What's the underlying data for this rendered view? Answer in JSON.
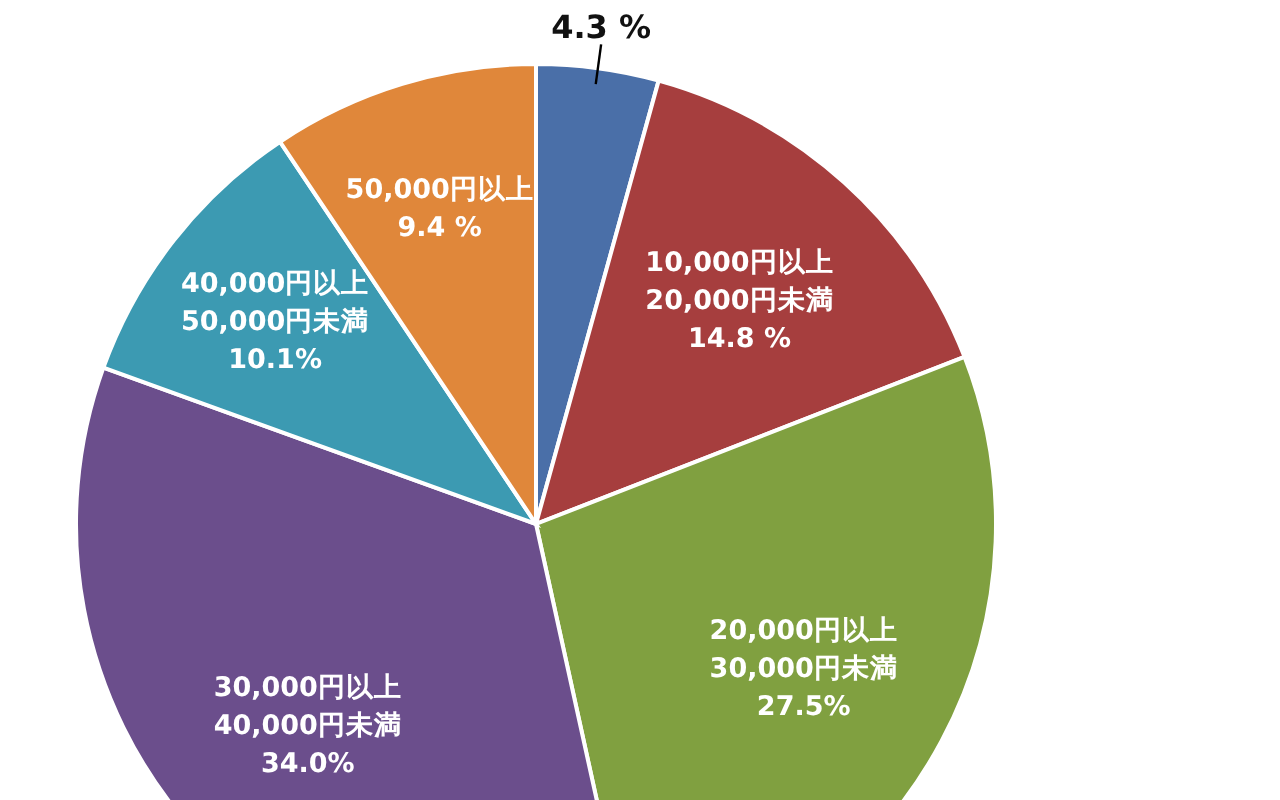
{
  "chart_data": {
    "type": "pie",
    "categories": [
      null,
      "10,000円以上20,000円未満",
      "20,000円以上30,000円未満",
      "30,000円以上40,000円未満",
      "40,000円以上50,000円未満",
      "50,000円以上"
    ],
    "values": [
      4.3,
      14.8,
      27.5,
      34.0,
      10.1,
      9.4
    ],
    "value_labels": [
      "4.3 %",
      "14.8 %",
      "27.5%",
      "34.0%",
      "10.1%",
      "9.4 %"
    ],
    "colors": [
      "#4a6fa8",
      "#a63e3e",
      "#80a040",
      "#6b4e8c",
      "#3c9ab2",
      "#e0873a"
    ]
  }
}
